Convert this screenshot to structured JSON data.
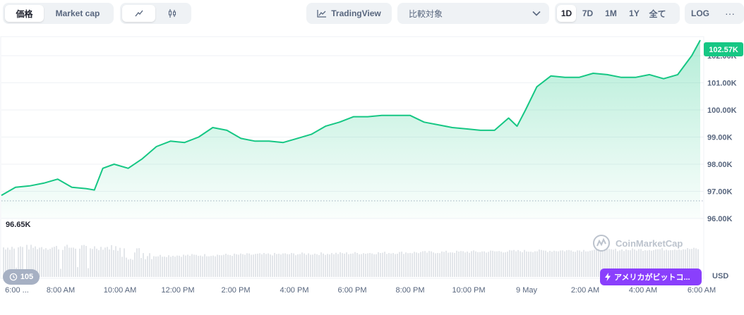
{
  "toolbar": {
    "metric_tabs": [
      "価格",
      "Market cap"
    ],
    "type_icons": [
      "line-chart-icon",
      "candlestick-icon"
    ],
    "tradingview_label": "TradingView",
    "compare_placeholder": "比較対象",
    "ranges": [
      "1D",
      "7D",
      "1M",
      "1Y",
      "全て"
    ],
    "log_label": "LOG",
    "more_label": "···"
  },
  "chart": {
    "current_price_label": "102.57K",
    "open_price_label": "96.65K",
    "watermark": "CoinMarketCap",
    "volume_axis_label": "USD",
    "accent_color": "#16c784"
  },
  "badges": {
    "history_count": "105",
    "news_text": "アメリカがビットコ..."
  },
  "chart_data": {
    "type": "area",
    "ylim": [
      96000,
      102700
    ],
    "yticks": [
      "102.00K",
      "101.00K",
      "100.00K",
      "99.00K",
      "98.00K",
      "97.00K",
      "96.00K"
    ],
    "ytick_values": [
      102000,
      101000,
      100000,
      99000,
      98000,
      97000,
      96000
    ],
    "xticks": [
      "6:00 ...",
      "8:00 AM",
      "10:00 AM",
      "12:00 PM",
      "2:00 PM",
      "4:00 PM",
      "6:00 PM",
      "8:00 PM",
      "10:00 PM",
      "9 May",
      "2:00 AM",
      "4:00 AM",
      "6:00 AM"
    ],
    "x": [
      0,
      0.5,
      1,
      1.5,
      2,
      2.5,
      3,
      3.3,
      3.6,
      4,
      4.5,
      5,
      5.5,
      6,
      6.5,
      7,
      7.5,
      8,
      8.5,
      9,
      9.5,
      10,
      10.5,
      11,
      11.5,
      12,
      12.5,
      13,
      13.5,
      14,
      14.5,
      15,
      15.5,
      16,
      16.5,
      17,
      17.5,
      18,
      18.3,
      18.6,
      19,
      19.5,
      20,
      20.5,
      21,
      21.5,
      22,
      22.5,
      23,
      23.5,
      24,
      24.5,
      24.8
    ],
    "price": [
      96850,
      97150,
      97200,
      97300,
      97450,
      97150,
      97100,
      97050,
      97850,
      98000,
      97850,
      98200,
      98650,
      98850,
      98800,
      99000,
      99350,
      99250,
      98950,
      98850,
      98850,
      98800,
      98950,
      99100,
      99400,
      99550,
      99750,
      99750,
      99800,
      99800,
      99800,
      99550,
      99450,
      99350,
      99300,
      99250,
      99250,
      99700,
      99400,
      100000,
      100850,
      101250,
      101200,
      101200,
      101350,
      101300,
      101200,
      101200,
      101300,
      101150,
      101300,
      102000,
      102570
    ]
  }
}
